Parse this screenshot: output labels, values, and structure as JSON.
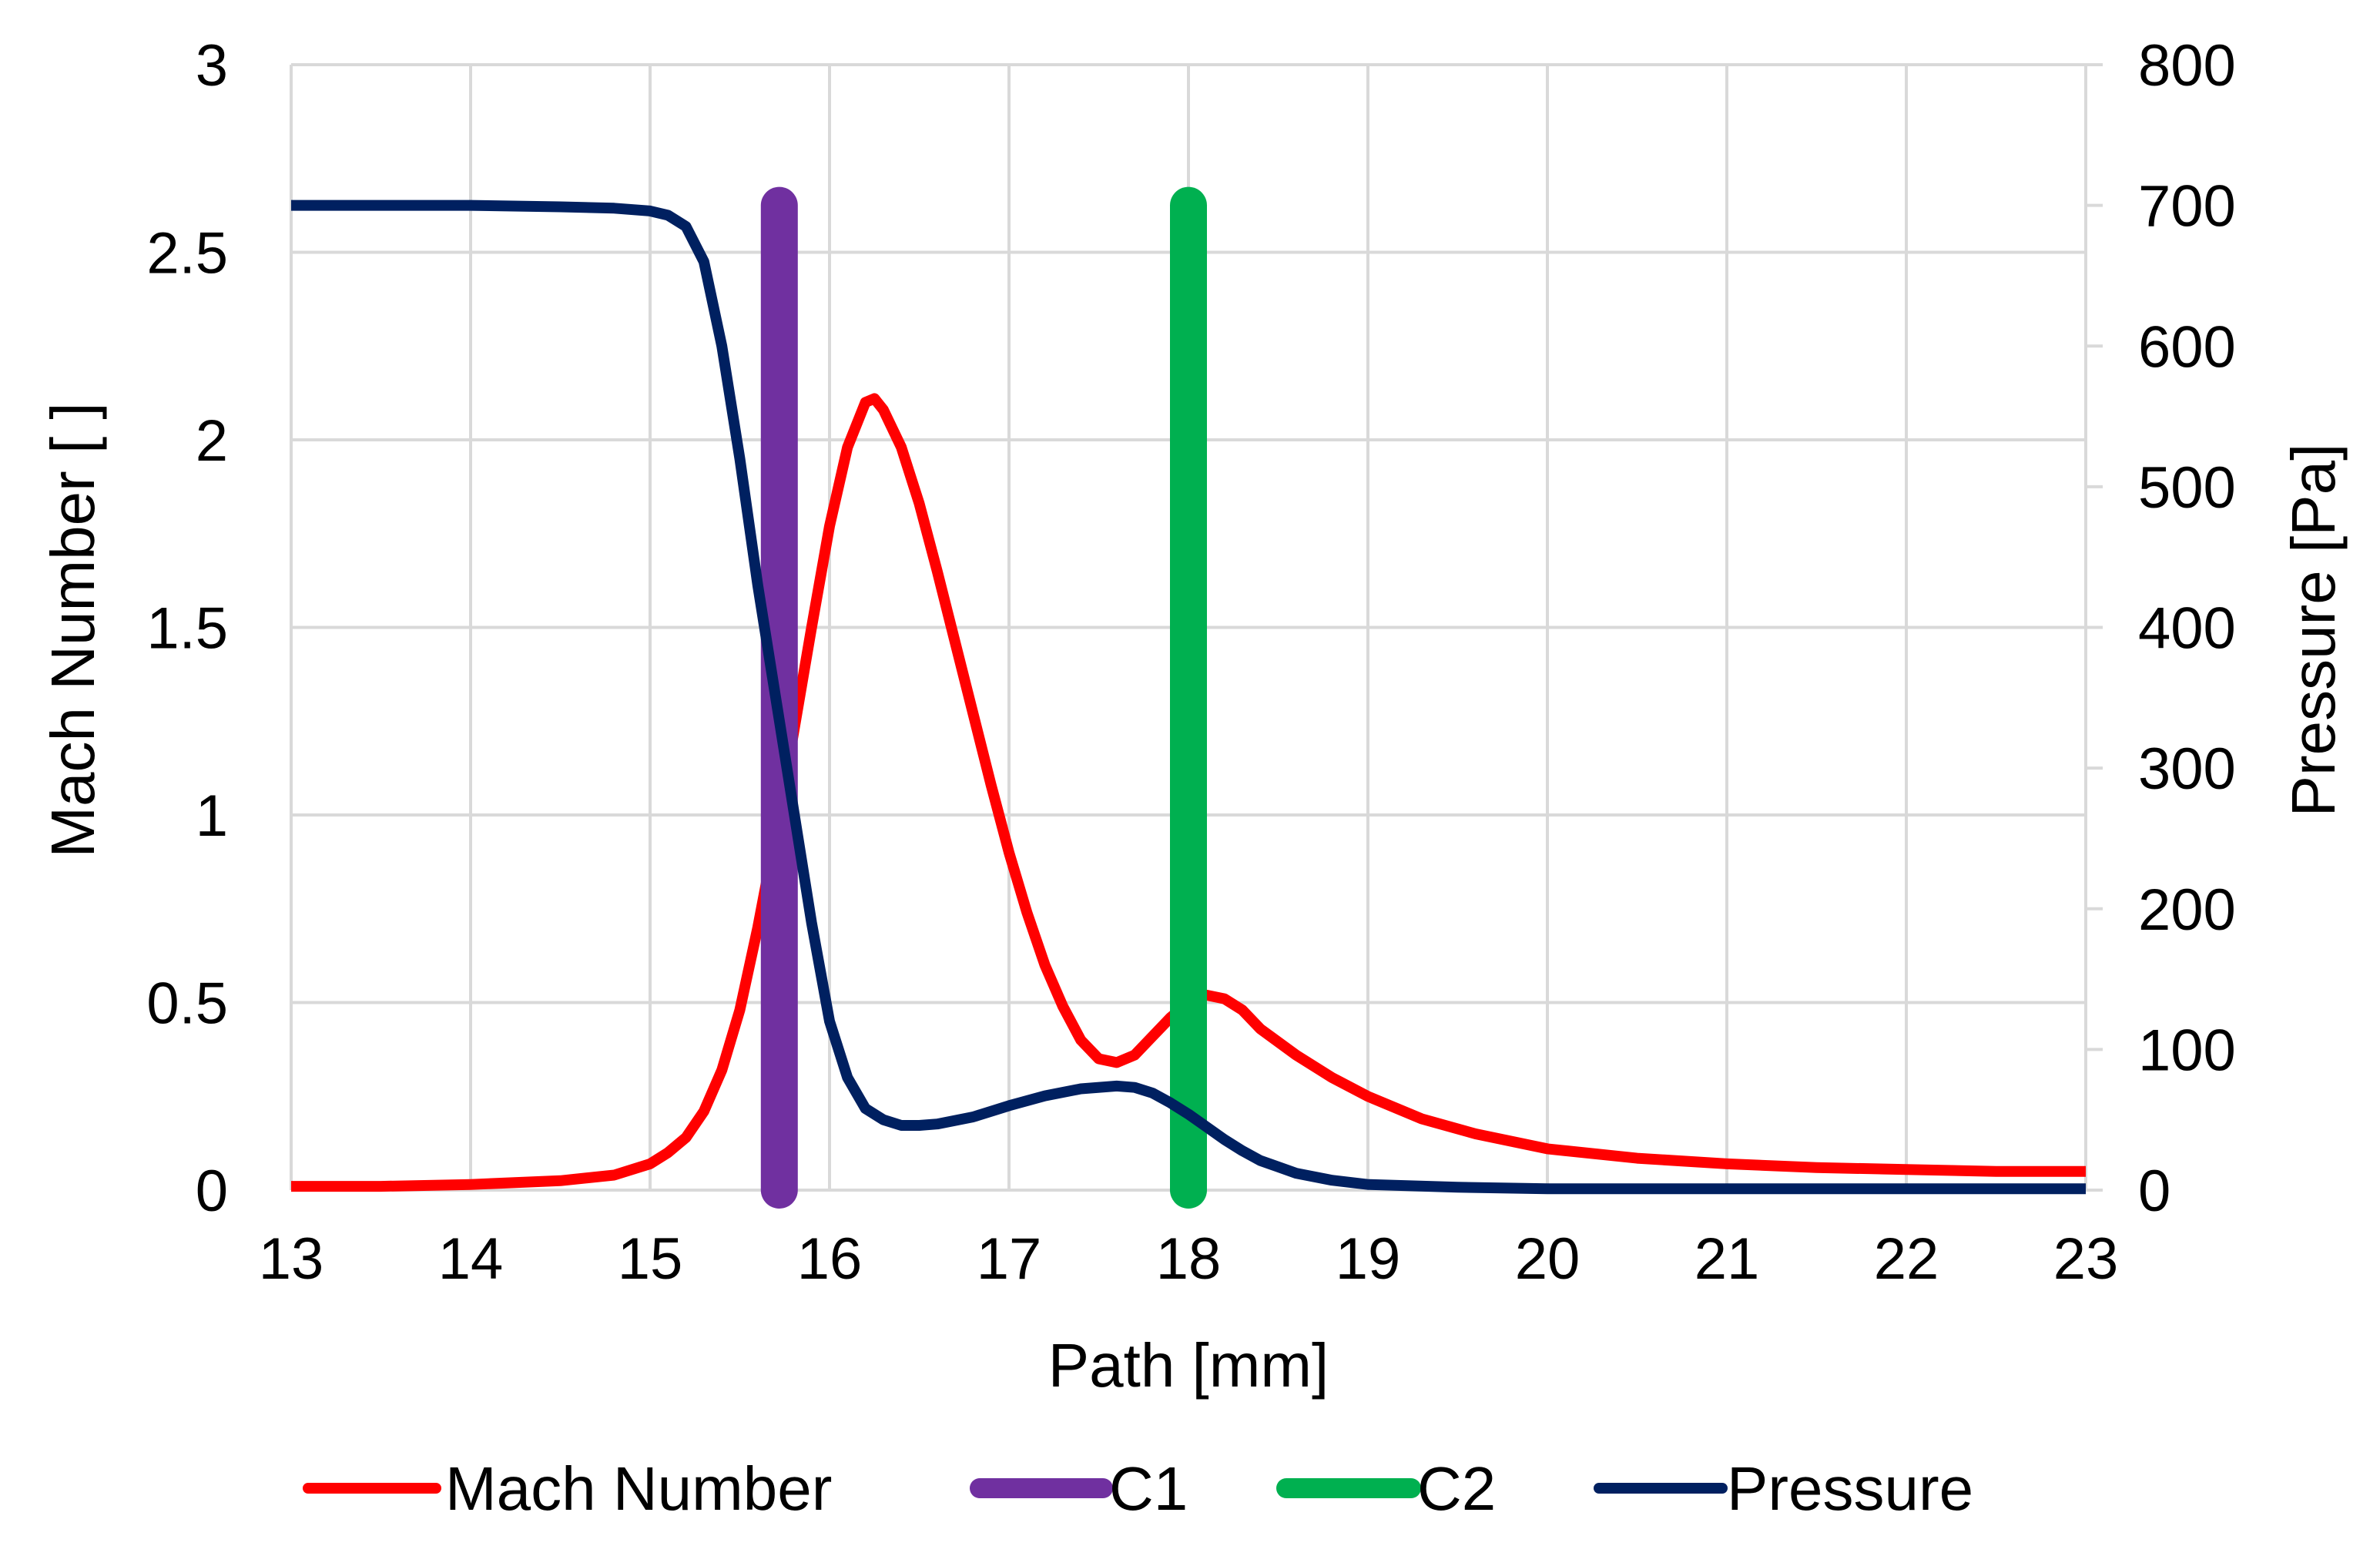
{
  "chart_data": {
    "type": "line",
    "title": "",
    "xlabel": "Path [mm]",
    "ylabel": "Mach Number [ ]",
    "y2label": "Pressure [Pa]",
    "xlim": [
      13,
      23
    ],
    "ylim": [
      0,
      3
    ],
    "y2lim": [
      0,
      800
    ],
    "grid": true,
    "legend_position": "bottom",
    "x_ticks": [
      "13",
      "14",
      "15",
      "16",
      "17",
      "18",
      "19",
      "20",
      "21",
      "22",
      "23"
    ],
    "y_ticks": [
      "0",
      "0.5",
      "1",
      "1.5",
      "2",
      "2.5",
      "3"
    ],
    "y2_ticks": [
      "0",
      "100",
      "200",
      "300",
      "400",
      "500",
      "600",
      "700",
      "800"
    ],
    "series": [
      {
        "name": "Mach Number",
        "axis": "left",
        "color": "#ff0000",
        "x": [
          13,
          13.5,
          14,
          14.5,
          14.8,
          15.0,
          15.1,
          15.2,
          15.3,
          15.4,
          15.5,
          15.6,
          15.7,
          15.8,
          15.9,
          16.0,
          16.1,
          16.2,
          16.25,
          16.3,
          16.4,
          16.5,
          16.6,
          16.7,
          16.8,
          16.9,
          17.0,
          17.1,
          17.2,
          17.3,
          17.4,
          17.5,
          17.6,
          17.7,
          17.8,
          17.9,
          18.0,
          18.1,
          18.2,
          18.3,
          18.4,
          18.6,
          18.8,
          19.0,
          19.3,
          19.6,
          20.0,
          20.5,
          21.0,
          21.5,
          22.0,
          22.5,
          23.0
        ],
        "values": [
          0.01,
          0.01,
          0.015,
          0.025,
          0.04,
          0.07,
          0.1,
          0.14,
          0.21,
          0.32,
          0.48,
          0.7,
          0.95,
          1.22,
          1.5,
          1.77,
          1.98,
          2.1,
          2.11,
          2.08,
          1.98,
          1.83,
          1.65,
          1.46,
          1.27,
          1.08,
          0.9,
          0.74,
          0.6,
          0.49,
          0.4,
          0.35,
          0.34,
          0.36,
          0.41,
          0.46,
          0.5,
          0.52,
          0.51,
          0.48,
          0.43,
          0.36,
          0.3,
          0.25,
          0.19,
          0.15,
          0.11,
          0.085,
          0.07,
          0.06,
          0.055,
          0.05,
          0.05
        ]
      },
      {
        "name": "C1",
        "axis": "right",
        "color": "#7030a0",
        "x": [
          15.72,
          15.72
        ],
        "values": [
          0,
          700
        ]
      },
      {
        "name": "C2",
        "axis": "right",
        "color": "#00b050",
        "x": [
          18.0,
          18.0
        ],
        "values": [
          0,
          700
        ]
      },
      {
        "name": "Pressure",
        "axis": "right",
        "color": "#002060",
        "x": [
          13,
          13.5,
          14,
          14.5,
          14.8,
          15.0,
          15.1,
          15.2,
          15.3,
          15.4,
          15.5,
          15.6,
          15.7,
          15.8,
          15.9,
          16.0,
          16.1,
          16.2,
          16.3,
          16.4,
          16.5,
          16.6,
          16.8,
          17.0,
          17.2,
          17.4,
          17.6,
          17.7,
          17.8,
          17.9,
          18.0,
          18.1,
          18.2,
          18.3,
          18.4,
          18.6,
          18.8,
          19.0,
          19.5,
          20.0,
          21.0,
          22.0,
          23.0
        ],
        "values": [
          700,
          700,
          700,
          699,
          698,
          696,
          693,
          685,
          660,
          600,
          520,
          430,
          350,
          270,
          190,
          120,
          80,
          58,
          50,
          46,
          46,
          47,
          52,
          60,
          67,
          72,
          74,
          73,
          69,
          62,
          54,
          45,
          36,
          28,
          21,
          12,
          7,
          4,
          2,
          1,
          1,
          1,
          1
        ]
      }
    ]
  }
}
